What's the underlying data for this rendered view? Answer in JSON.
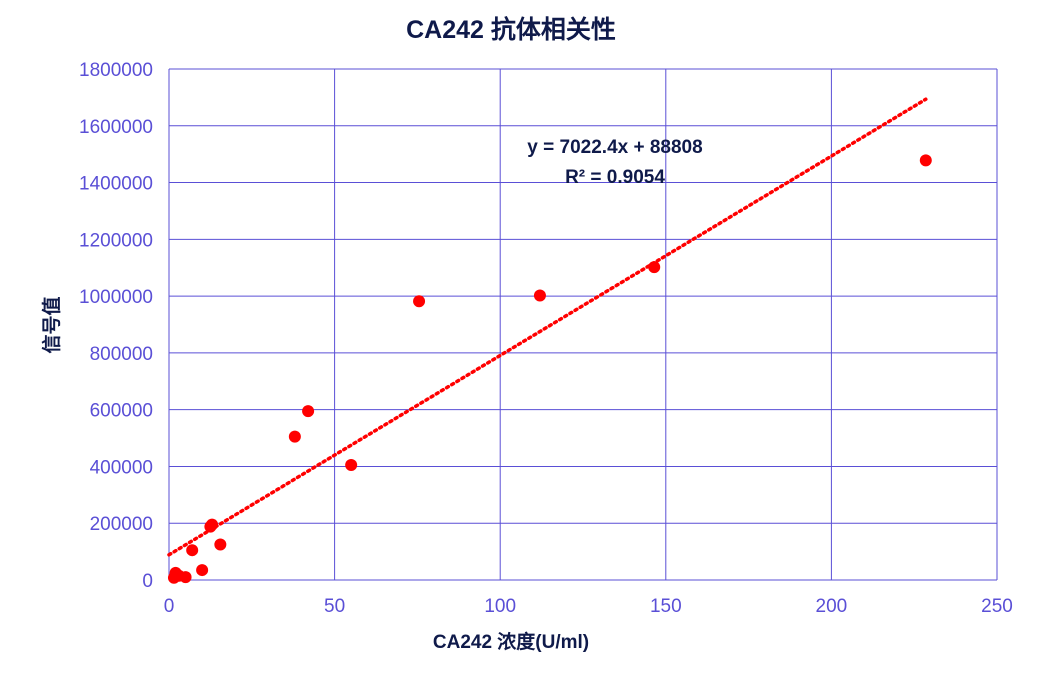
{
  "chart_data": {
    "type": "scatter",
    "title": "CA242 抗体相关性",
    "xlabel": "CA242 浓度(U/ml)",
    "ylabel": "信号值",
    "xlim": [
      0,
      250
    ],
    "ylim": [
      0,
      1800000
    ],
    "x_ticks": [
      "0",
      "50",
      "100",
      "150",
      "200",
      "250"
    ],
    "y_ticks": [
      "0",
      "200000",
      "400000",
      "600000",
      "800000",
      "1000000",
      "1200000",
      "1400000",
      "1600000",
      "1800000"
    ],
    "grid": true,
    "legend": "none",
    "point_color": "#ff0000",
    "grid_color": "#5a4fd6",
    "points": [
      {
        "x": 1.5,
        "y": 8000
      },
      {
        "x": 2,
        "y": 25000
      },
      {
        "x": 3,
        "y": 15000
      },
      {
        "x": 5,
        "y": 10000
      },
      {
        "x": 7,
        "y": 105000
      },
      {
        "x": 10,
        "y": 35000
      },
      {
        "x": 12.5,
        "y": 188000
      },
      {
        "x": 13,
        "y": 195000
      },
      {
        "x": 15.5,
        "y": 125000
      },
      {
        "x": 38,
        "y": 505000
      },
      {
        "x": 42,
        "y": 595000
      },
      {
        "x": 55,
        "y": 405000
      },
      {
        "x": 75.5,
        "y": 982000
      },
      {
        "x": 112,
        "y": 1002000
      },
      {
        "x": 146.5,
        "y": 1102000
      },
      {
        "x": 228.5,
        "y": 1478000
      }
    ],
    "trendline": {
      "type": "linear",
      "slope": 7022.4,
      "intercept": 88808,
      "x_range": [
        0,
        228.5
      ],
      "color": "#ff0000",
      "style": "dotted",
      "equation": "y = 7022.4x + 88808",
      "r_squared": "R² = 0.9054"
    }
  }
}
